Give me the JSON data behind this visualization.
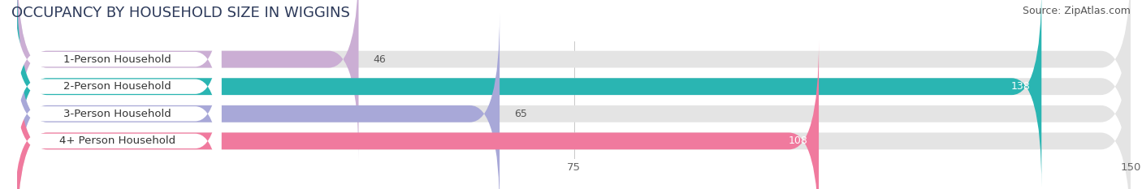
{
  "title": "OCCUPANCY BY HOUSEHOLD SIZE IN WIGGINS",
  "source": "Source: ZipAtlas.com",
  "categories": [
    "1-Person Household",
    "2-Person Household",
    "3-Person Household",
    "4+ Person Household"
  ],
  "values": [
    46,
    138,
    65,
    108
  ],
  "bar_colors": [
    "#cbaed4",
    "#2ab5b2",
    "#a8a8d8",
    "#f07a9e"
  ],
  "bar_label_colors": [
    "#444444",
    "#ffffff",
    "#444444",
    "#ffffff"
  ],
  "xlim": [
    0,
    150
  ],
  "xticks": [
    0,
    75,
    150
  ],
  "background_color": "#ffffff",
  "bar_bg_color": "#e4e4e4",
  "title_fontsize": 13,
  "source_fontsize": 9,
  "label_fontsize": 9.5,
  "value_fontsize": 9,
  "bar_height": 0.62,
  "label_pill_color": "#ffffff",
  "figsize": [
    14.06,
    2.33
  ],
  "dpi": 100
}
